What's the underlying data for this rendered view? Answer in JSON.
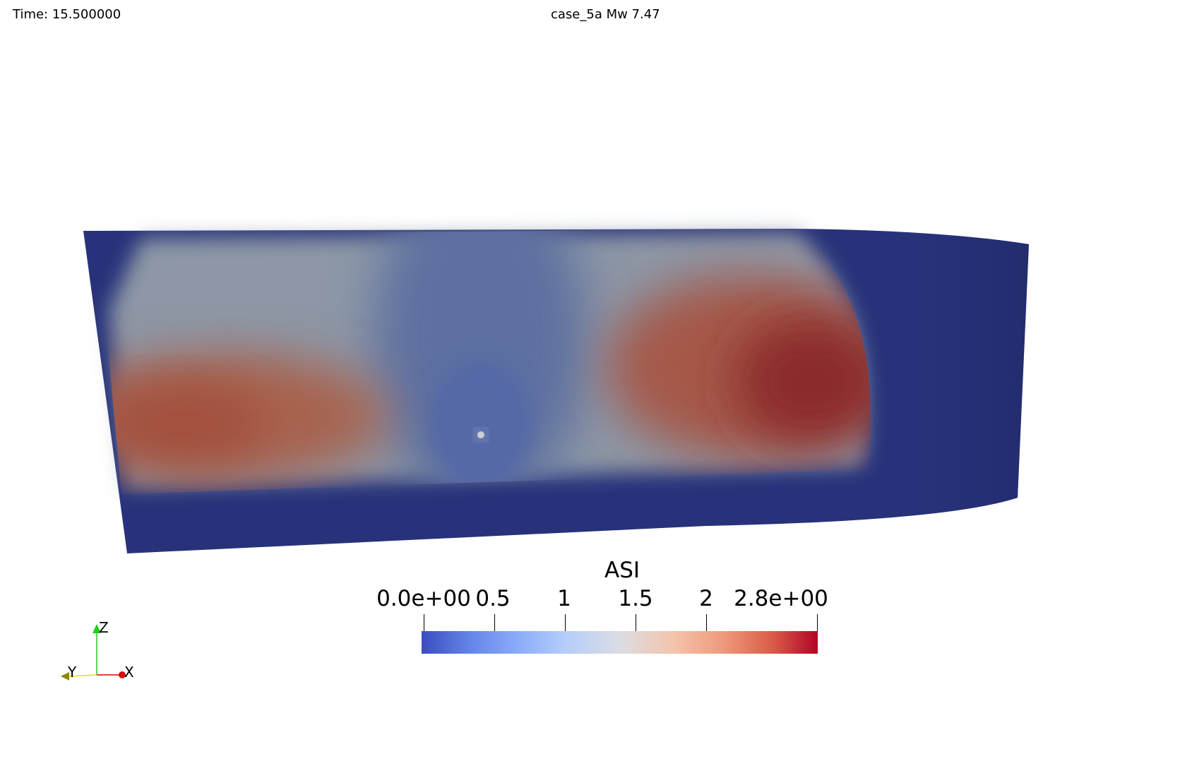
{
  "header": {
    "time_label": "Time: 15.500000",
    "title": "case_5a Mw 7.47"
  },
  "colorbar": {
    "title": "ASI",
    "tick_labels": [
      "0.0e+00",
      "0.5",
      "1",
      "1.5",
      "2",
      "2.8e+00"
    ],
    "colormap": [
      "#3b4cc0",
      "#dbdde4",
      "#b40426"
    ]
  },
  "surface": {
    "background_color": "#27327a"
  },
  "orientation_axes": {
    "x_label": "X",
    "y_label": "Y",
    "z_label": "Z",
    "x_color": "#e00000",
    "y_color": "#e6e000",
    "z_color": "#22cc22"
  }
}
